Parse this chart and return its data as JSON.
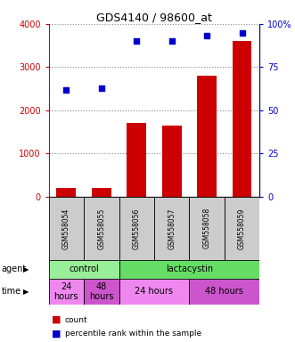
{
  "title": "GDS4140 / 98600_at",
  "categories": [
    "GSM558054",
    "GSM558055",
    "GSM558056",
    "GSM558057",
    "GSM558058",
    "GSM558059"
  ],
  "counts": [
    200,
    200,
    1700,
    1650,
    2800,
    3600
  ],
  "percentile_ranks": [
    62,
    63,
    90,
    90,
    93,
    95
  ],
  "left_ylim": [
    0,
    4000
  ],
  "right_ylim": [
    0,
    100
  ],
  "left_yticks": [
    0,
    1000,
    2000,
    3000,
    4000
  ],
  "right_yticks": [
    0,
    25,
    50,
    75,
    100
  ],
  "right_yticklabels": [
    "0",
    "25",
    "50",
    "75",
    "100%"
  ],
  "bar_color": "#cc0000",
  "scatter_color": "#0000cc",
  "agent_row": [
    {
      "label": "control",
      "start": 0,
      "end": 2,
      "color": "#99ee99"
    },
    {
      "label": "lactacystin",
      "start": 2,
      "end": 6,
      "color": "#66dd66"
    }
  ],
  "time_row": [
    {
      "label": "24\nhours",
      "start": 0,
      "end": 1,
      "color": "#ee88ee"
    },
    {
      "label": "48\nhours",
      "start": 1,
      "end": 2,
      "color": "#cc55cc"
    },
    {
      "label": "24 hours",
      "start": 2,
      "end": 4,
      "color": "#ee88ee"
    },
    {
      "label": "48 hours",
      "start": 4,
      "end": 6,
      "color": "#cc55cc"
    }
  ],
  "legend_count_color": "#cc0000",
  "legend_pct_color": "#0000cc",
  "tick_label_color_left": "#cc0000",
  "tick_label_color_right": "#0000cc",
  "background_color": "#ffffff",
  "grid_color": "#888888"
}
